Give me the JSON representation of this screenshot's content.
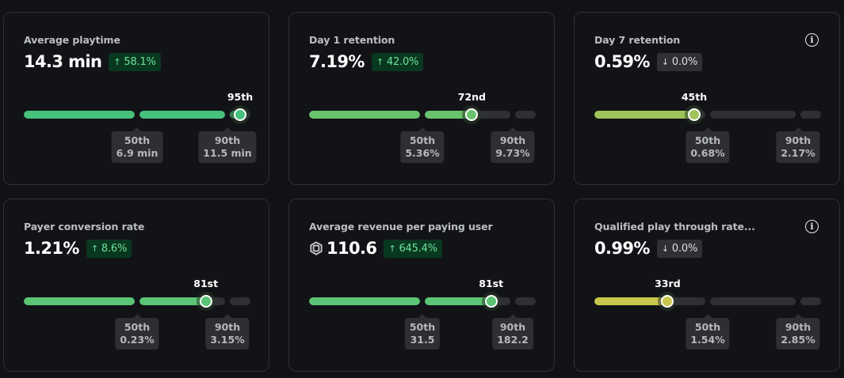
{
  "cards": [
    {
      "title": "Average playtime",
      "value": "14.3 min",
      "currency_icon": null,
      "change": "58.1%",
      "change_direction": "up",
      "change_icon": "arrow-up-icon",
      "info_icon": false,
      "percentile": 95,
      "percentile_label": "95th",
      "color": "#46c27c",
      "benchmarks": [
        {
          "label": "50th",
          "value": "6.9 min"
        },
        {
          "label": "90th",
          "value": "11.5 min"
        }
      ]
    },
    {
      "title": "Day 1 retention",
      "value": "7.19%",
      "currency_icon": null,
      "change": "42.0%",
      "change_direction": "up",
      "change_icon": "arrow-up-icon",
      "info_icon": false,
      "percentile": 72,
      "percentile_label": "72nd",
      "color": "#68c36d",
      "benchmarks": [
        {
          "label": "50th",
          "value": "5.36%"
        },
        {
          "label": "90th",
          "value": "9.73%"
        }
      ]
    },
    {
      "title": "Day 7 retention",
      "value": "0.59%",
      "currency_icon": null,
      "change": "0.0%",
      "change_direction": "down",
      "change_icon": "arrow-down-icon",
      "info_icon": true,
      "info_glyph": "i",
      "percentile": 45,
      "percentile_label": "45th",
      "color": "#9fc45a",
      "benchmarks": [
        {
          "label": "50th",
          "value": "0.68%"
        },
        {
          "label": "90th",
          "value": "2.17%"
        }
      ]
    },
    {
      "title": "Payer conversion rate",
      "value": "1.21%",
      "currency_icon": null,
      "change": "8.6%",
      "change_direction": "up",
      "change_icon": "arrow-up-icon",
      "info_icon": false,
      "percentile": 81,
      "percentile_label": "81st",
      "color": "#5ac574",
      "benchmarks": [
        {
          "label": "50th",
          "value": "0.23%"
        },
        {
          "label": "90th",
          "value": "3.15%"
        }
      ]
    },
    {
      "title": "Average revenue per paying user",
      "value": "110.6",
      "currency_icon": "robux-icon",
      "change": "645.4%",
      "change_direction": "up",
      "change_icon": "arrow-up-icon",
      "info_icon": false,
      "percentile": 81,
      "percentile_label": "81st",
      "color": "#5ac574",
      "benchmarks": [
        {
          "label": "50th",
          "value": "31.5"
        },
        {
          "label": "90th",
          "value": "182.2"
        }
      ]
    },
    {
      "title": "Qualified play through rate...",
      "value": "0.99%",
      "currency_icon": null,
      "change": "0.0%",
      "change_direction": "down",
      "change_icon": "arrow-down-icon",
      "info_icon": true,
      "info_glyph": "i",
      "percentile": 33,
      "percentile_label": "33rd",
      "color": "#c9c64c",
      "benchmarks": [
        {
          "label": "50th",
          "value": "1.54%"
        },
        {
          "label": "90th",
          "value": "2.85%"
        }
      ]
    }
  ],
  "arrows": {
    "up": "↑",
    "down": "↓"
  }
}
